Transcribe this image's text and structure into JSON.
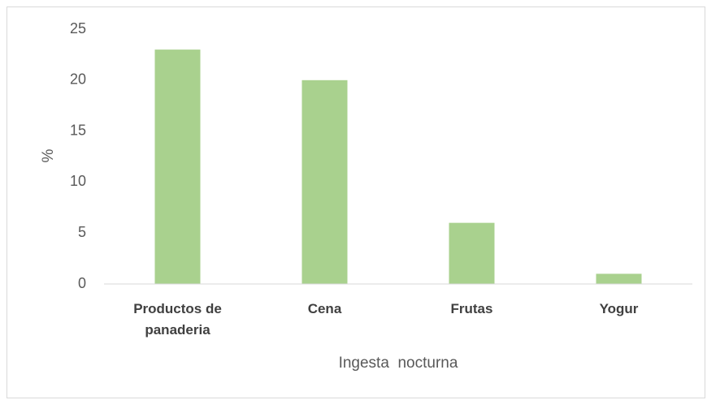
{
  "chart_data": {
    "type": "bar",
    "categories": [
      "Productos de panaderia",
      "Cena",
      "Frutas",
      "Yogur"
    ],
    "values": [
      23,
      20,
      6,
      1
    ],
    "color": "#a9d18e",
    "x_label": "Ingesta  nocturna",
    "y_label": "%",
    "ylim": [
      0,
      25
    ],
    "yticks": [
      0,
      5,
      10,
      15,
      20,
      25
    ],
    "grid": false
  }
}
